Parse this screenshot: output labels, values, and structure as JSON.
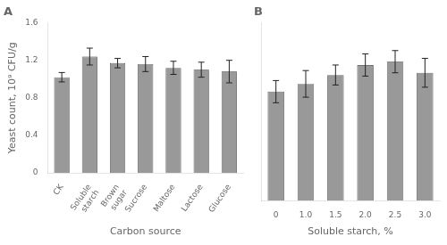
{
  "chart_data": [
    {
      "type": "bar",
      "title": "A",
      "categories": [
        "CK",
        "Soluble\nstarch",
        "Brown\nsugar",
        "Sucrose",
        "Maltose",
        "Lactose",
        "Glucose"
      ],
      "values": [
        1.02,
        1.24,
        1.17,
        1.16,
        1.12,
        1.1,
        1.08
      ],
      "errors": [
        0.05,
        0.09,
        0.05,
        0.08,
        0.07,
        0.08,
        0.12
      ],
      "xlabel": "Carbon source",
      "ylabel": "Yeast count, 10⁹ CFU/g",
      "color": "#999999",
      "ylim": [
        0,
        1.6
      ],
      "yticks": [
        0,
        0.4,
        0.8,
        1.2,
        1.6
      ],
      "grid": false
    },
    {
      "type": "bar",
      "title": "B",
      "categories": [
        "0",
        "1.0",
        "1.5",
        "2.0",
        "2.5",
        "3.0"
      ],
      "values": [
        0.98,
        1.05,
        1.13,
        1.22,
        1.25,
        1.15
      ],
      "errors": [
        0.1,
        0.12,
        0.09,
        0.1,
        0.1,
        0.13
      ],
      "xlabel": "Soluble starch, %",
      "color": "#999999",
      "ylim": [
        0,
        1.6
      ],
      "yticks": [
        0,
        0.4,
        0.8,
        1.2,
        1.6
      ],
      "grid": false,
      "tick_labels": "x"
    }
  ]
}
